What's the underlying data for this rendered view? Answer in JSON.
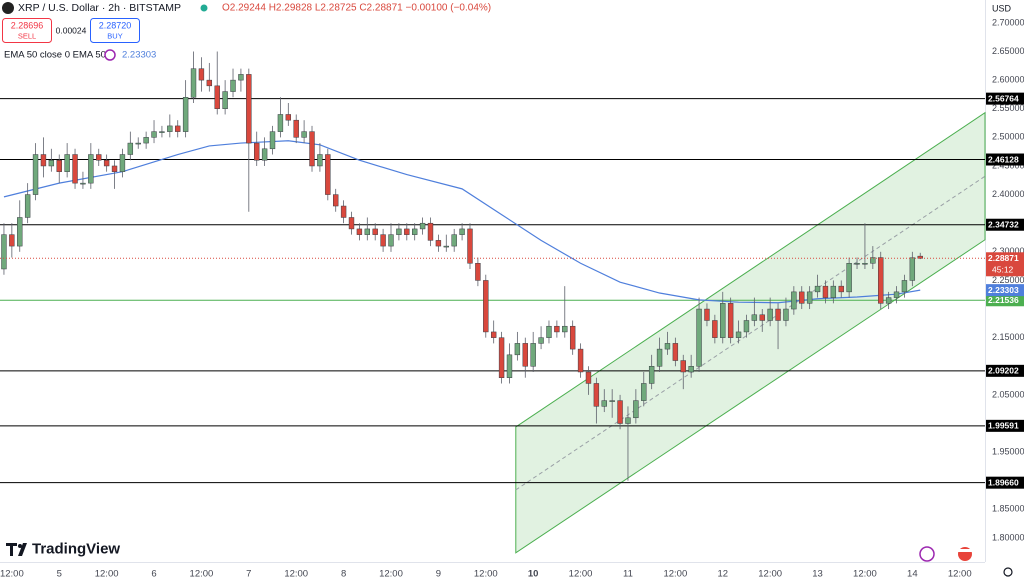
{
  "chart_data": {
    "type": "candlestick",
    "title": "XRP / U.S. Dollar · 2h · BITSTAMP",
    "ohlc_text": "O2.29244 H2.29828 L2.28725 C2.28871 −0.00100 (−0.04%)",
    "sell": {
      "price": "2.28696",
      "label": "SELL"
    },
    "spread": "0.00024",
    "buy": {
      "price": "2.28720",
      "label": "BUY"
    },
    "currency": "USD",
    "countdown": "45:12",
    "brand": "TradingView",
    "up_color": "#70a97c",
    "down_color": "#d9483d",
    "candles": [
      [
        2.27,
        2.35,
        2.26,
        2.33
      ],
      [
        2.33,
        2.35,
        2.29,
        2.31
      ],
      [
        2.31,
        2.39,
        2.3,
        2.36
      ],
      [
        2.36,
        2.42,
        2.35,
        2.4
      ],
      [
        2.4,
        2.49,
        2.39,
        2.47
      ],
      [
        2.47,
        2.5,
        2.43,
        2.45
      ],
      [
        2.45,
        2.48,
        2.44,
        2.46
      ],
      [
        2.46,
        2.47,
        2.42,
        2.44
      ],
      [
        2.44,
        2.49,
        2.43,
        2.47
      ],
      [
        2.47,
        2.48,
        2.41,
        2.42
      ],
      [
        2.42,
        2.44,
        2.41,
        2.42
      ],
      [
        2.42,
        2.49,
        2.41,
        2.47
      ],
      [
        2.47,
        2.48,
        2.45,
        2.46
      ],
      [
        2.46,
        2.47,
        2.44,
        2.45
      ],
      [
        2.45,
        2.46,
        2.41,
        2.44
      ],
      [
        2.44,
        2.48,
        2.43,
        2.47
      ],
      [
        2.47,
        2.51,
        2.46,
        2.49
      ],
      [
        2.49,
        2.5,
        2.48,
        2.49
      ],
      [
        2.49,
        2.51,
        2.48,
        2.5
      ],
      [
        2.5,
        2.53,
        2.49,
        2.51
      ],
      [
        2.51,
        2.52,
        2.5,
        2.51
      ],
      [
        2.51,
        2.54,
        2.5,
        2.52
      ],
      [
        2.52,
        2.53,
        2.5,
        2.51
      ],
      [
        2.51,
        2.6,
        2.5,
        2.57
      ],
      [
        2.57,
        2.65,
        2.56,
        2.62
      ],
      [
        2.62,
        2.64,
        2.58,
        2.6
      ],
      [
        2.6,
        2.63,
        2.58,
        2.59
      ],
      [
        2.59,
        2.65,
        2.54,
        2.55
      ],
      [
        2.55,
        2.6,
        2.54,
        2.58
      ],
      [
        2.58,
        2.62,
        2.57,
        2.6
      ],
      [
        2.6,
        2.62,
        2.58,
        2.61
      ],
      [
        2.61,
        2.62,
        2.37,
        2.49
      ],
      [
        2.49,
        2.51,
        2.45,
        2.46
      ],
      [
        2.46,
        2.5,
        2.45,
        2.48
      ],
      [
        2.48,
        2.52,
        2.47,
        2.51
      ],
      [
        2.51,
        2.57,
        2.5,
        2.54
      ],
      [
        2.54,
        2.56,
        2.52,
        2.53
      ],
      [
        2.53,
        2.54,
        2.49,
        2.5
      ],
      [
        2.5,
        2.53,
        2.49,
        2.51
      ],
      [
        2.51,
        2.52,
        2.44,
        2.45
      ],
      [
        2.45,
        2.49,
        2.44,
        2.47
      ],
      [
        2.47,
        2.48,
        2.39,
        2.4
      ],
      [
        2.4,
        2.41,
        2.37,
        2.38
      ],
      [
        2.38,
        2.39,
        2.35,
        2.36
      ],
      [
        2.36,
        2.37,
        2.33,
        2.34
      ],
      [
        2.34,
        2.35,
        2.32,
        2.33
      ],
      [
        2.33,
        2.36,
        2.32,
        2.34
      ],
      [
        2.34,
        2.35,
        2.32,
        2.33
      ],
      [
        2.33,
        2.34,
        2.3,
        2.31
      ],
      [
        2.31,
        2.35,
        2.3,
        2.33
      ],
      [
        2.33,
        2.35,
        2.32,
        2.34
      ],
      [
        2.34,
        2.35,
        2.32,
        2.33
      ],
      [
        2.33,
        2.35,
        2.32,
        2.34
      ],
      [
        2.34,
        2.36,
        2.33,
        2.35
      ],
      [
        2.35,
        2.36,
        2.31,
        2.32
      ],
      [
        2.32,
        2.33,
        2.3,
        2.31
      ],
      [
        2.31,
        2.33,
        2.3,
        2.31
      ],
      [
        2.31,
        2.34,
        2.3,
        2.33
      ],
      [
        2.33,
        2.35,
        2.32,
        2.34
      ],
      [
        2.34,
        2.35,
        2.27,
        2.28
      ],
      [
        2.28,
        2.29,
        2.24,
        2.25
      ],
      [
        2.25,
        2.26,
        2.15,
        2.16
      ],
      [
        2.16,
        2.18,
        2.14,
        2.15
      ],
      [
        2.15,
        2.16,
        2.07,
        2.08
      ],
      [
        2.08,
        2.14,
        2.07,
        2.12
      ],
      [
        2.12,
        2.16,
        2.11,
        2.14
      ],
      [
        2.14,
        2.15,
        2.08,
        2.1
      ],
      [
        2.1,
        2.16,
        2.09,
        2.14
      ],
      [
        2.14,
        2.17,
        2.13,
        2.15
      ],
      [
        2.15,
        2.18,
        2.14,
        2.17
      ],
      [
        2.17,
        2.18,
        2.15,
        2.16
      ],
      [
        2.16,
        2.24,
        2.15,
        2.17
      ],
      [
        2.17,
        2.18,
        2.12,
        2.13
      ],
      [
        2.13,
        2.14,
        2.08,
        2.09
      ],
      [
        2.09,
        2.1,
        2.05,
        2.07
      ],
      [
        2.07,
        2.08,
        2.0,
        2.03
      ],
      [
        2.03,
        2.06,
        2.02,
        2.04
      ],
      [
        2.04,
        2.06,
        2.01,
        2.04
      ],
      [
        2.04,
        2.05,
        1.99,
        2.0
      ],
      [
        2.0,
        2.03,
        1.9,
        2.01
      ],
      [
        2.01,
        2.06,
        2.0,
        2.04
      ],
      [
        2.04,
        2.09,
        2.03,
        2.07
      ],
      [
        2.07,
        2.12,
        2.06,
        2.1
      ],
      [
        2.1,
        2.15,
        2.09,
        2.13
      ],
      [
        2.13,
        2.16,
        2.12,
        2.14
      ],
      [
        2.14,
        2.15,
        2.1,
        2.11
      ],
      [
        2.11,
        2.12,
        2.06,
        2.09
      ],
      [
        2.09,
        2.12,
        2.08,
        2.1
      ],
      [
        2.1,
        2.22,
        2.09,
        2.2
      ],
      [
        2.2,
        2.21,
        2.17,
        2.18
      ],
      [
        2.18,
        2.19,
        2.14,
        2.15
      ],
      [
        2.15,
        2.23,
        2.14,
        2.21
      ],
      [
        2.21,
        2.22,
        2.14,
        2.15
      ],
      [
        2.15,
        2.18,
        2.14,
        2.16
      ],
      [
        2.16,
        2.19,
        2.15,
        2.18
      ],
      [
        2.18,
        2.22,
        2.17,
        2.19
      ],
      [
        2.19,
        2.2,
        2.16,
        2.18
      ],
      [
        2.18,
        2.22,
        2.17,
        2.2
      ],
      [
        2.2,
        2.21,
        2.13,
        2.18
      ],
      [
        2.18,
        2.22,
        2.17,
        2.2
      ],
      [
        2.2,
        2.24,
        2.19,
        2.23
      ],
      [
        2.23,
        2.24,
        2.2,
        2.21
      ],
      [
        2.21,
        2.24,
        2.2,
        2.23
      ],
      [
        2.23,
        2.26,
        2.22,
        2.24
      ],
      [
        2.24,
        2.25,
        2.21,
        2.22
      ],
      [
        2.22,
        2.25,
        2.21,
        2.24
      ],
      [
        2.24,
        2.25,
        2.22,
        2.23
      ],
      [
        2.23,
        2.29,
        2.22,
        2.28
      ],
      [
        2.28,
        2.29,
        2.27,
        2.28
      ],
      [
        2.28,
        2.35,
        2.27,
        2.28
      ],
      [
        2.28,
        2.31,
        2.27,
        2.29
      ],
      [
        2.29,
        2.3,
        2.2,
        2.21
      ],
      [
        2.21,
        2.23,
        2.2,
        2.22
      ],
      [
        2.22,
        2.24,
        2.21,
        2.23
      ],
      [
        2.23,
        2.26,
        2.22,
        2.25
      ],
      [
        2.25,
        2.3,
        2.24,
        2.28971
      ],
      [
        2.29244,
        2.29828,
        2.28725,
        2.28871
      ]
    ],
    "ema": {
      "name": "EMA 50 close 0 EMA 50",
      "color": "#4f7fdc",
      "x": [
        0,
        7,
        15,
        22,
        26,
        30,
        36,
        40,
        45,
        51,
        58,
        63,
        68,
        73,
        78,
        83,
        88,
        93,
        98,
        103,
        108,
        113,
        116
      ],
      "values": [
        2.396,
        2.42,
        2.44,
        2.47,
        2.485,
        2.49,
        2.494,
        2.487,
        2.46,
        2.435,
        2.41,
        2.365,
        2.32,
        2.28,
        2.247,
        2.228,
        2.216,
        2.212,
        2.211,
        2.218,
        2.221,
        2.226,
        2.23303
      ]
    },
    "levels": [
      {
        "value": 2.56764,
        "label": "2.56764",
        "color": "#000000"
      },
      {
        "value": 2.46128,
        "label": "2.46128",
        "color": "#000000"
      },
      {
        "value": 2.34732,
        "label": "2.34732",
        "color": "#000000"
      },
      {
        "value": 2.21536,
        "label": "2.21536",
        "color": "#4caf50"
      },
      {
        "value": 2.09202,
        "label": "2.09202",
        "color": "#000000"
      },
      {
        "value": 1.99591,
        "label": "1.99591",
        "color": "#000000"
      },
      {
        "value": 1.8966,
        "label": "1.89660",
        "color": "#000000"
      }
    ],
    "channel": {
      "x": [
        64.8,
        124.2
      ],
      "upper": [
        1.994,
        2.543
      ],
      "lower": [
        1.774,
        2.321
      ],
      "color": "#4caf50"
    },
    "xlim": [
      -0.5,
      124.2
    ],
    "ylim": [
      1.758,
      2.74
    ],
    "yticks": [
      {
        "value": 2.7,
        "label": "2.70000"
      },
      {
        "value": 2.65,
        "label": "2.65000"
      },
      {
        "value": 2.6,
        "label": "2.60000"
      },
      {
        "value": 2.55,
        "label": "2.55000"
      },
      {
        "value": 2.5,
        "label": "2.50000"
      },
      {
        "value": 2.45,
        "label": "2.45000"
      },
      {
        "value": 2.4,
        "label": "2.40000"
      },
      {
        "value": 2.3,
        "label": "2.30000"
      },
      {
        "value": 2.25,
        "label": "2.25000"
      },
      {
        "value": 2.15,
        "label": "2.15000"
      },
      {
        "value": 2.05,
        "label": "2.05000"
      },
      {
        "value": 1.95,
        "label": "1.95000"
      },
      {
        "value": 1.85,
        "label": "1.85000"
      },
      {
        "value": 1.8,
        "label": "1.80000"
      }
    ],
    "xticks": [
      {
        "value": 1,
        "label": "12:00"
      },
      {
        "value": 7,
        "label": "5"
      },
      {
        "value": 13,
        "label": "12:00"
      },
      {
        "value": 19,
        "label": "6"
      },
      {
        "value": 25,
        "label": "12:00"
      },
      {
        "value": 31,
        "label": "7"
      },
      {
        "value": 37,
        "label": "12:00"
      },
      {
        "value": 43,
        "label": "8"
      },
      {
        "value": 49,
        "label": "12:00"
      },
      {
        "value": 55,
        "label": "9"
      },
      {
        "value": 61,
        "label": "12:00"
      },
      {
        "value": 67,
        "label": "10"
      },
      {
        "value": 73,
        "label": "12:00"
      },
      {
        "value": 79,
        "label": "11"
      },
      {
        "value": 85,
        "label": "12:00"
      },
      {
        "value": 91,
        "label": "12"
      },
      {
        "value": 97,
        "label": "12:00"
      },
      {
        "value": 103,
        "label": "13"
      },
      {
        "value": 109,
        "label": "12:00"
      },
      {
        "value": 115,
        "label": "14"
      },
      {
        "value": 121,
        "label": "12:00"
      }
    ]
  }
}
